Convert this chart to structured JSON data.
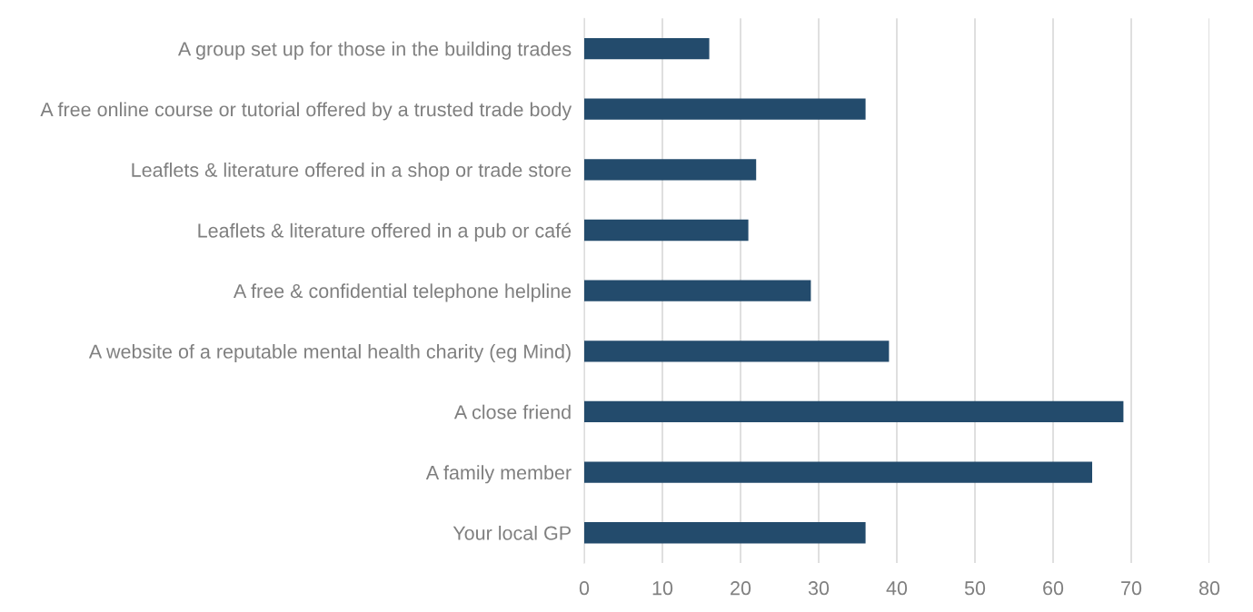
{
  "chart_data": {
    "type": "bar",
    "orientation": "horizontal",
    "categories": [
      "A group set up for those in the building trades",
      "A free online course or tutorial offered by a trusted trade body",
      "Leaflets & literature offered in a shop or trade store",
      "Leaflets & literature offered in a pub or café",
      "A free & confidential telephone helpline",
      "A website of a reputable mental health charity (eg Mind)",
      "A close friend",
      "A family member",
      "Your local GP"
    ],
    "values": [
      16,
      36,
      22,
      21,
      29,
      39,
      69,
      65,
      36
    ],
    "color": "#234b6c",
    "xlim": [
      0,
      80
    ],
    "xticks": [
      0,
      10,
      20,
      30,
      40,
      50,
      60,
      70,
      80
    ],
    "grid": "x",
    "legend": false
  }
}
